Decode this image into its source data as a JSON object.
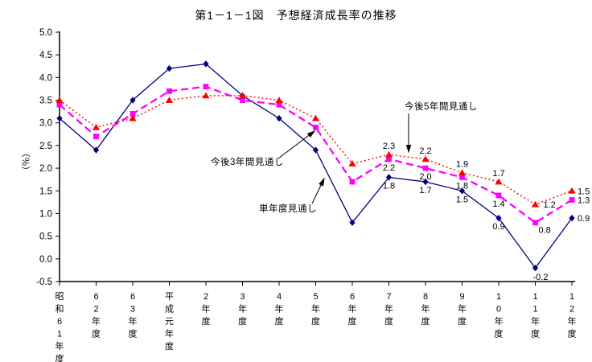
{
  "title": "第1－1－1図　予想経済成長率の推移",
  "chart_data": {
    "type": "line",
    "title": "第1－1－1図　予想経済成長率の推移",
    "xlabel": "",
    "ylabel": "（％）",
    "ylim": [
      -0.5,
      5.0
    ],
    "ytick_step": 0.5,
    "yticks": [
      "5.0",
      "4.5",
      "4.0",
      "3.5",
      "3.0",
      "2.5",
      "2.0",
      "1.5",
      "1.0",
      "0.5",
      "0.0",
      "-0.5"
    ],
    "grid": false,
    "legend_position": "none (series identified by arrow annotations)",
    "categories": [
      "昭和61年度",
      "62年度",
      "63年度",
      "平成元年度",
      "2年度",
      "3年度",
      "4年度",
      "5年度",
      "6年度",
      "7年度",
      "8年度",
      "9年度",
      "10年度",
      "11年度",
      "12年度"
    ],
    "series": [
      {
        "key": "single-year",
        "name": "単年度見通し",
        "color": "#000080",
        "line": "solid",
        "marker": "diamond",
        "values": [
          3.1,
          2.4,
          3.5,
          4.2,
          4.3,
          3.6,
          3.1,
          2.4,
          0.8,
          1.8,
          1.7,
          1.5,
          0.9,
          -0.2,
          0.9
        ]
      },
      {
        "key": "three-year",
        "name": "今後3年間見通し",
        "color": "#FF00FF",
        "line": "dashed",
        "marker": "square",
        "values": [
          3.4,
          2.7,
          3.2,
          3.7,
          3.8,
          3.5,
          3.4,
          2.9,
          1.7,
          2.2,
          2.0,
          1.8,
          1.4,
          0.8,
          1.3
        ]
      },
      {
        "key": "five-year",
        "name": "今後5年間見通し",
        "color": "#FF0000",
        "line": "dotted",
        "marker": "triangle",
        "values": [
          3.5,
          2.9,
          3.1,
          3.5,
          3.6,
          3.6,
          3.5,
          3.1,
          2.1,
          2.3,
          2.2,
          1.9,
          1.7,
          1.2,
          1.5
        ]
      }
    ],
    "data_label_start_index": 9,
    "data_labels_note": "numeric labels shown only from 7年度 onward",
    "annotations": [
      {
        "key": "five-year",
        "text": "今後5年間見通し"
      },
      {
        "key": "three-year",
        "text": "今後3年間見通し"
      },
      {
        "key": "single-year",
        "text": "単年度見通し"
      }
    ],
    "axis_color": "#000000",
    "background_color": "#FFFFFF"
  }
}
